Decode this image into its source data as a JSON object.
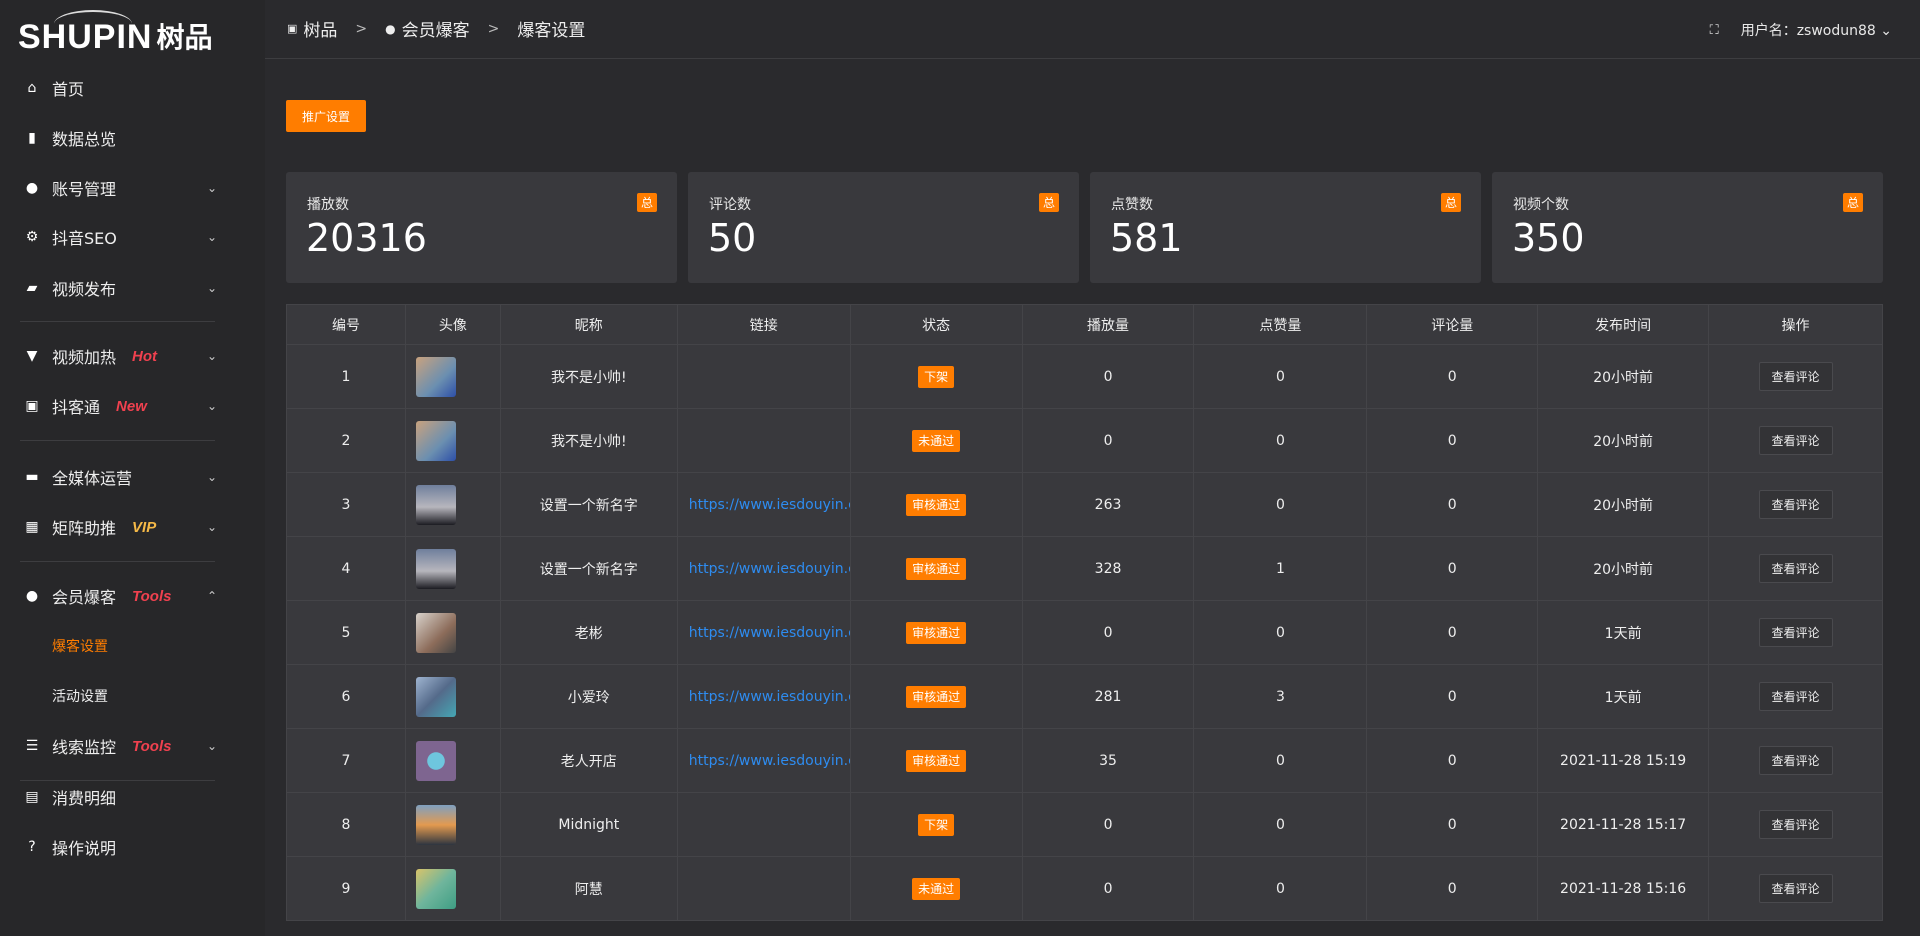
{
  "brand": {
    "logo_en": "SHUPIN",
    "logo_cn": "树品"
  },
  "sidebar": {
    "items": [
      {
        "label": "首页",
        "icon": "home-icon",
        "glyph": "⌂",
        "tag": "",
        "tag_color": "",
        "chevron": ""
      },
      {
        "label": "数据总览",
        "icon": "bar-chart-icon",
        "glyph": "▮",
        "tag": "",
        "tag_color": "",
        "chevron": ""
      },
      {
        "label": "账号管理",
        "icon": "user-icon",
        "glyph": "●",
        "tag": "",
        "tag_color": "",
        "chevron": "⌄"
      },
      {
        "label": "抖音SEO",
        "icon": "gear-icon",
        "glyph": "⚙",
        "tag": "",
        "tag_color": "",
        "chevron": "⌄"
      },
      {
        "label": "视频发布",
        "icon": "video-camera-icon",
        "glyph": "▰",
        "tag": "",
        "tag_color": "",
        "chevron": "⌄"
      },
      {
        "label": "视频加热",
        "icon": "board-icon",
        "glyph": "▼",
        "tag": "Hot",
        "tag_color": "#f0414f",
        "chevron": "⌄"
      },
      {
        "label": "抖客通",
        "icon": "chat-icon",
        "glyph": "▣",
        "tag": "New",
        "tag_color": "#f0414f",
        "chevron": "⌄"
      },
      {
        "label": "全媒体运营",
        "icon": "monitor-icon",
        "glyph": "▬",
        "tag": "",
        "tag_color": "",
        "chevron": "⌄"
      },
      {
        "label": "矩阵助推",
        "icon": "grid-icon",
        "glyph": "▦",
        "tag": "VIP",
        "tag_color": "#f5b947",
        "chevron": "⌄"
      },
      {
        "label": "会员爆客",
        "icon": "user-icon",
        "glyph": "●",
        "tag": "Tools",
        "tag_color": "#f0414f",
        "chevron": "⌃"
      },
      {
        "label": "线索监控",
        "icon": "sliders-icon",
        "glyph": "☰",
        "tag": "Tools",
        "tag_color": "#f0414f",
        "chevron": "⌄"
      },
      {
        "label": "消费明细",
        "icon": "wallet-icon",
        "glyph": "▤",
        "tag": "",
        "tag_color": "",
        "chevron": ""
      },
      {
        "label": "操作说明",
        "icon": "help-icon",
        "glyph": "?",
        "tag": "",
        "tag_color": "",
        "chevron": ""
      }
    ],
    "sub_items": [
      {
        "label": "爆客设置",
        "active": true
      },
      {
        "label": "活动设置",
        "active": false
      }
    ]
  },
  "breadcrumb": [
    {
      "label": "树品",
      "icon": "image-icon"
    },
    {
      "label": "会员爆客",
      "icon": "user-icon"
    },
    {
      "label": "爆客设置"
    }
  ],
  "breadcrumb_sep": ">",
  "header": {
    "user_label": "用户名：zswodun88",
    "fullscreen_icon": "fullscreen-icon"
  },
  "promo_button": "推广设置",
  "accent": "#ff7d00",
  "stats": [
    {
      "label": "播放数",
      "value": "20316",
      "badge": "总"
    },
    {
      "label": "评论数",
      "value": "50",
      "badge": "总"
    },
    {
      "label": "点赞数",
      "value": "581",
      "badge": "总"
    },
    {
      "label": "视频个数",
      "value": "350",
      "badge": "总"
    }
  ],
  "table": {
    "headers": [
      "编号",
      "头像",
      "昵称",
      "链接",
      "状态",
      "播放量",
      "点赞量",
      "评论量",
      "发布时间",
      "操作"
    ],
    "rows": [
      {
        "id": "1",
        "nickname": "我不是小帅!",
        "link": "",
        "status": "下架",
        "plays": "0",
        "likes": "0",
        "comments": "0",
        "time": "20小时前",
        "action": "查看评论"
      },
      {
        "id": "2",
        "nickname": "我不是小帅!",
        "link": "",
        "status": "未通过",
        "plays": "0",
        "likes": "0",
        "comments": "0",
        "time": "20小时前",
        "action": "查看评论"
      },
      {
        "id": "3",
        "nickname": "设置一个新名字",
        "link": "https://www.iesdouyin.c",
        "status": "审核通过",
        "plays": "263",
        "likes": "0",
        "comments": "0",
        "time": "20小时前",
        "action": "查看评论"
      },
      {
        "id": "4",
        "nickname": "设置一个新名字",
        "link": "https://www.iesdouyin.c",
        "status": "审核通过",
        "plays": "328",
        "likes": "1",
        "comments": "0",
        "time": "20小时前",
        "action": "查看评论"
      },
      {
        "id": "5",
        "nickname": "老彬",
        "link": "https://www.iesdouyin.c",
        "status": "审核通过",
        "plays": "0",
        "likes": "0",
        "comments": "0",
        "time": "1天前",
        "action": "查看评论"
      },
      {
        "id": "6",
        "nickname": "小爱玲",
        "link": "https://www.iesdouyin.c",
        "status": "审核通过",
        "plays": "281",
        "likes": "3",
        "comments": "0",
        "time": "1天前",
        "action": "查看评论"
      },
      {
        "id": "7",
        "nickname": "老人开店",
        "link": "https://www.iesdouyin.c",
        "status": "审核通过",
        "plays": "35",
        "likes": "0",
        "comments": "0",
        "time": "2021-11-28 15:19",
        "action": "查看评论"
      },
      {
        "id": "8",
        "nickname": "Midnight",
        "link": "",
        "status": "下架",
        "plays": "0",
        "likes": "0",
        "comments": "0",
        "time": "2021-11-28 15:17",
        "action": "查看评论"
      },
      {
        "id": "9",
        "nickname": "阿慧",
        "link": "",
        "status": "未通过",
        "plays": "0",
        "likes": "0",
        "comments": "0",
        "time": "2021-11-28 15:16",
        "action": "查看评论"
      }
    ]
  }
}
